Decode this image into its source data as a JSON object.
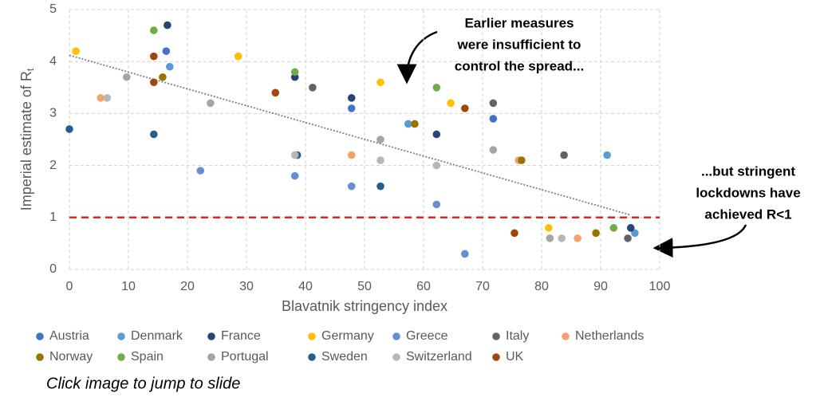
{
  "chart_data": {
    "type": "scatter",
    "xlabel": "Blavatnik stringency index",
    "ylabel": "Imperial estimate of R",
    "ylabel_sub": "t",
    "xlim": [
      0,
      100
    ],
    "xticks": [
      0,
      10,
      20,
      30,
      40,
      50,
      60,
      70,
      80,
      90,
      100
    ],
    "ylim": [
      0,
      5
    ],
    "yticks": [
      0,
      1,
      2,
      3,
      4,
      5
    ],
    "grid": true,
    "reference_line": {
      "y": 1,
      "color": "#e8231f"
    },
    "trendline": {
      "x": [
        0,
        95
      ],
      "y": [
        4.12,
        1.05
      ],
      "color": "#808080"
    },
    "annotations": [
      {
        "lines": [
          "Earlier measures",
          "were insufficient to",
          "control the spread..."
        ]
      },
      {
        "lines": [
          "...but stringent",
          "lockdowns have",
          "achieved R<1"
        ]
      }
    ],
    "caption": "Click image to jump to slide",
    "series": [
      {
        "name": "Austria",
        "color": "#4472c4",
        "x": [
          16.4,
          47.8,
          71.8
        ],
        "values": [
          4.2,
          3.1,
          2.9
        ]
      },
      {
        "name": "Denmark",
        "color": "#5b9bd5",
        "x": [
          17,
          57.4,
          91.1,
          95.8
        ],
        "values": [
          3.9,
          2.8,
          2.2,
          0.7
        ]
      },
      {
        "name": "France",
        "color": "#264478",
        "x": [
          16.6,
          38.2,
          47.8,
          62.2,
          95.1
        ],
        "values": [
          4.7,
          3.7,
          3.3,
          2.6,
          0.8
        ]
      },
      {
        "name": "Germany",
        "color": "#ffc000",
        "x": [
          1.1,
          28.6,
          52.7,
          64.6,
          81.2
        ],
        "values": [
          4.2,
          4.1,
          3.6,
          3.2,
          0.8
        ]
      },
      {
        "name": "Greece",
        "color": "#698ed0",
        "x": [
          22.2,
          38.2,
          47.8,
          62.2,
          67
        ],
        "values": [
          1.9,
          1.8,
          1.6,
          1.25,
          0.3
        ]
      },
      {
        "name": "Italy",
        "color": "#636363",
        "x": [
          41.2,
          71.8,
          83.8,
          94.6
        ],
        "values": [
          3.5,
          3.2,
          2.2,
          0.6
        ]
      },
      {
        "name": "Netherlands",
        "color": "#f4a16a",
        "x": [
          5.3,
          47.8,
          76.1,
          86.1
        ],
        "values": [
          3.3,
          2.2,
          2.1,
          0.6
        ]
      },
      {
        "name": "Norway",
        "color": "#997300",
        "x": [
          15.8,
          58.5,
          76.6,
          89.2
        ],
        "values": [
          3.7,
          2.8,
          2.1,
          0.7
        ]
      },
      {
        "name": "Spain",
        "color": "#70ad47",
        "x": [
          14.3,
          38.2,
          62.2,
          92.2
        ],
        "values": [
          4.6,
          3.8,
          3.5,
          0.8
        ]
      },
      {
        "name": "Portugal",
        "color": "#a5a5a5",
        "x": [
          9.7,
          23.9,
          52.7,
          71.8,
          81.4
        ],
        "values": [
          3.7,
          3.2,
          2.5,
          2.3,
          0.6
        ]
      },
      {
        "name": "Sweden",
        "color": "#255e91",
        "x": [
          0,
          14.3,
          38.6,
          52.7
        ],
        "values": [
          2.7,
          2.6,
          2.2,
          1.6
        ]
      },
      {
        "name": "Switzerland",
        "color": "#b7b7b7",
        "x": [
          6.4,
          38.2,
          52.7,
          62.2,
          83.4
        ],
        "values": [
          3.3,
          2.2,
          2.1,
          2.0,
          0.6
        ]
      },
      {
        "name": "UK",
        "color": "#9e480e",
        "x": [
          14.3,
          14.3,
          34.9,
          67,
          75.4
        ],
        "values": [
          4.1,
          3.6,
          3.4,
          3.1,
          0.7
        ]
      }
    ]
  }
}
